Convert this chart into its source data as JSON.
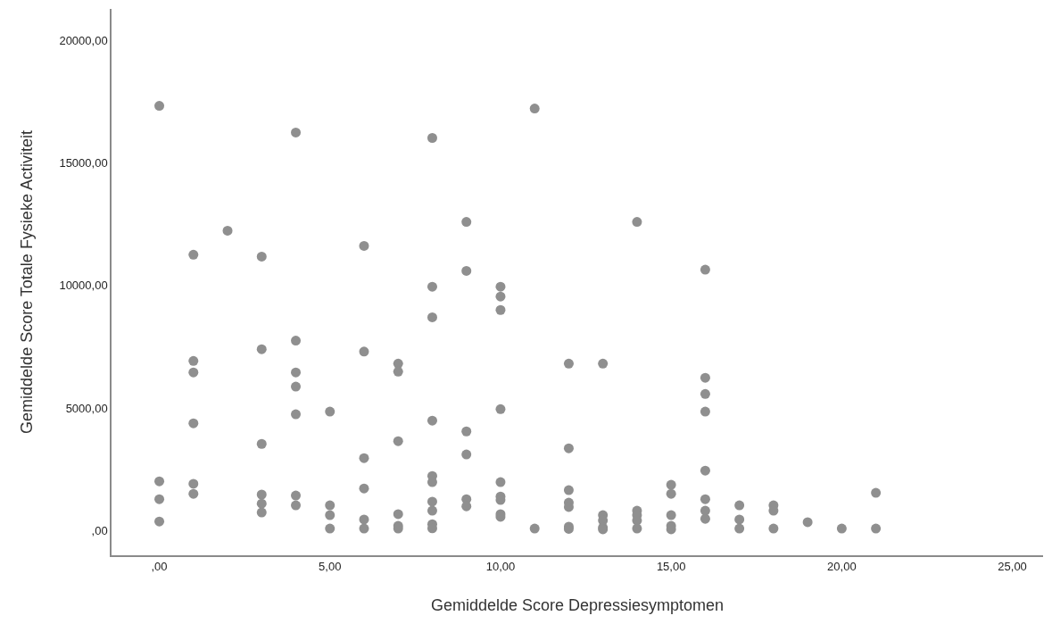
{
  "chart_data": {
    "type": "scatter",
    "xlabel": "Gemiddelde Score Depressiesymptomen",
    "ylabel": "Gemiddelde Score Totale Fysieke Activiteit",
    "color": "#8f8f8f",
    "marker": "circle",
    "grid": false,
    "x": [
      0,
      0,
      0,
      0,
      1,
      1,
      1,
      1,
      1,
      1,
      2,
      3,
      3,
      3,
      3,
      3,
      3,
      4,
      4,
      4,
      4,
      4,
      4,
      4,
      5,
      5,
      5,
      5,
      6,
      6,
      6,
      6,
      6,
      6,
      7,
      7,
      7,
      7,
      7,
      7,
      8,
      8,
      8,
      8,
      8,
      8,
      8,
      8,
      8,
      8,
      9,
      9,
      9,
      9,
      9,
      9,
      10,
      10,
      10,
      10,
      10,
      10,
      10,
      10,
      10,
      11,
      11,
      12,
      12,
      12,
      12,
      12,
      12,
      12,
      13,
      13,
      13,
      13,
      13,
      14,
      14,
      14,
      14,
      14,
      15,
      15,
      15,
      15,
      15,
      16,
      16,
      16,
      16,
      16,
      16,
      16,
      16,
      17,
      17,
      17,
      18,
      18,
      18,
      19,
      20,
      21,
      21
    ],
    "values": [
      17340,
      2000,
      1270,
      360,
      11260,
      6920,
      6450,
      4370,
      1900,
      1490,
      12240,
      11180,
      7400,
      3530,
      1460,
      1090,
      730,
      16250,
      7750,
      6450,
      5870,
      4740,
      1420,
      1020,
      4850,
      1020,
      620,
      70,
      11620,
      7300,
      2950,
      1710,
      440,
      70,
      6810,
      6480,
      3640,
      660,
      180,
      70,
      16030,
      9950,
      8700,
      4480,
      2220,
      1970,
      1170,
      800,
      250,
      80,
      12600,
      10600,
      4040,
      3100,
      1270,
      980,
      9950,
      9550,
      9000,
      4950,
      1970,
      1380,
      1240,
      660,
      550,
      17230,
      70,
      6810,
      3350,
      1640,
      1130,
      950,
      150,
      60,
      6810,
      620,
      400,
      110,
      40,
      12600,
      800,
      620,
      400,
      70,
      1860,
      1490,
      620,
      180,
      40,
      10650,
      6230,
      5570,
      4850,
      2440,
      1270,
      800,
      470,
      1020,
      440,
      70,
      1020,
      800,
      70,
      330,
      70,
      1530,
      70
    ],
    "xlim": [
      -1.4,
      25.9
    ],
    "xticks": [
      {
        "value": 0,
        "label": ",00"
      },
      {
        "value": 5,
        "label": "5,00"
      },
      {
        "value": 10,
        "label": "10,00"
      },
      {
        "value": 15,
        "label": "15,00"
      },
      {
        "value": 20,
        "label": "20,00"
      },
      {
        "value": 25,
        "label": "25,00"
      }
    ],
    "ylim": [
      -1020,
      21300
    ],
    "yticks": [
      {
        "value": 0,
        "label": ",00"
      },
      {
        "value": 5000,
        "label": "5000,00"
      },
      {
        "value": 10000,
        "label": "10000,00"
      },
      {
        "value": 15000,
        "label": "15000,00"
      },
      {
        "value": 20000,
        "label": "20000,00"
      }
    ]
  }
}
